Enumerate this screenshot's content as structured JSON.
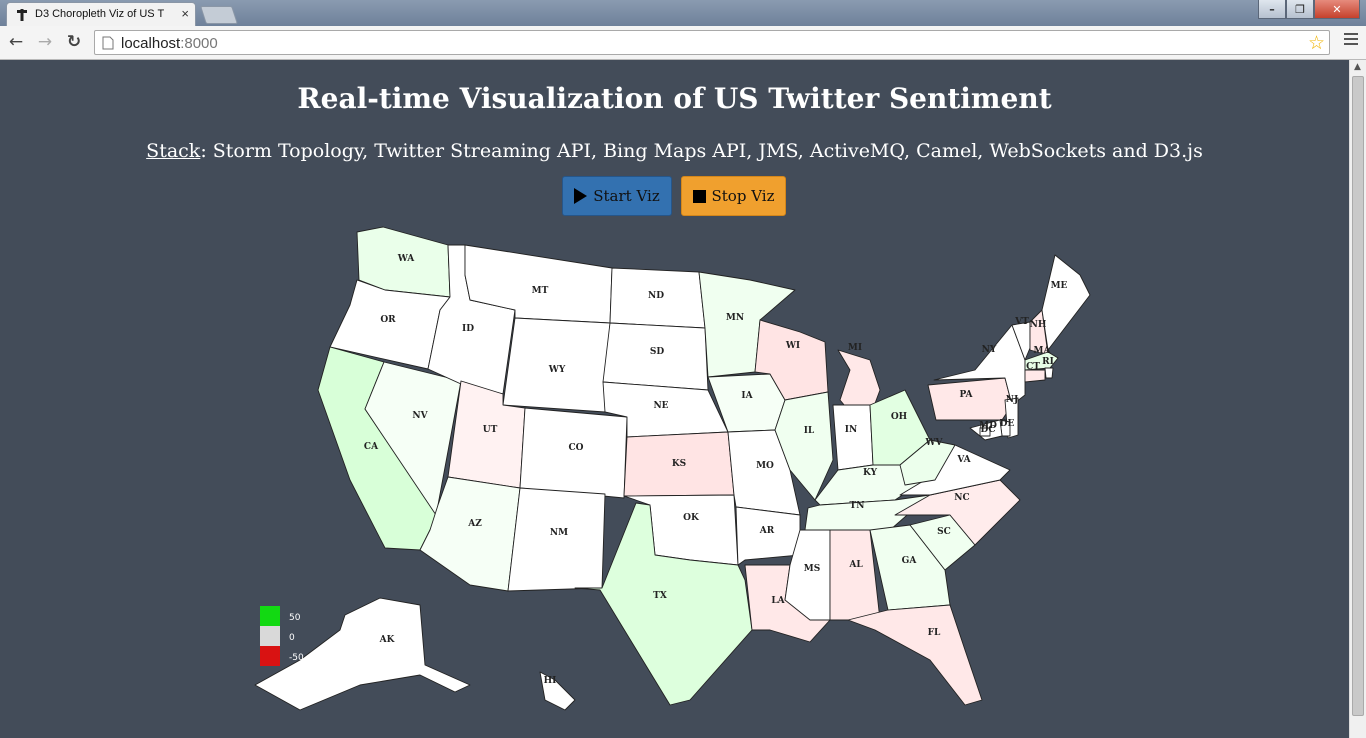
{
  "browser": {
    "tab_title": "D3 Choropleth Viz of US T",
    "tab_close": "×",
    "url_host": "localhost",
    "url_port": ":8000",
    "back_glyph": "←",
    "forward_glyph": "→",
    "reload_glyph": "↻",
    "bookmark_glyph": "☆",
    "minimize_glyph": "–",
    "maximize_glyph": "❐",
    "close_glyph": "✕"
  },
  "page": {
    "title": "Real-time Visualization of US Twitter Sentiment",
    "stack_label": "Stack",
    "stack_text": ": Storm Topology, Twitter Streaming API, Bing Maps API, JMS, ActiveMQ, Camel, WebSockets and D3.js",
    "start_button": "Start Viz",
    "stop_button": "Stop Viz"
  },
  "colors": {
    "background": "#434c59",
    "positive": "#12d912",
    "neutral": "#d9d9d9",
    "negative": "#d91212",
    "start_button": "#3371b0",
    "stop_button": "#f0a02e"
  },
  "icons": {
    "start": "play-icon",
    "stop": "stop-icon",
    "bookmark": "star-icon",
    "menu": "hamburger-menu-icon"
  },
  "map": {
    "legend": [
      {
        "label": "50",
        "color": "#12d912"
      },
      {
        "label": "0",
        "color": "#d9d9d9"
      },
      {
        "label": "-50",
        "color": "#d91212"
      }
    ],
    "states": [
      {
        "code": "WA",
        "fill": "#eaffea"
      },
      {
        "code": "OR",
        "fill": "#ffffff"
      },
      {
        "code": "CA",
        "fill": "#d8ffd8"
      },
      {
        "code": "NV",
        "fill": "#f6fff6"
      },
      {
        "code": "ID",
        "fill": "#ffffff"
      },
      {
        "code": "MT",
        "fill": "#ffffff"
      },
      {
        "code": "WY",
        "fill": "#ffffff"
      },
      {
        "code": "UT",
        "fill": "#fff2f2"
      },
      {
        "code": "AZ",
        "fill": "#f6fff6"
      },
      {
        "code": "CO",
        "fill": "#ffffff"
      },
      {
        "code": "NM",
        "fill": "#ffffff"
      },
      {
        "code": "ND",
        "fill": "#ffffff"
      },
      {
        "code": "SD",
        "fill": "#ffffff"
      },
      {
        "code": "NE",
        "fill": "#ffffff"
      },
      {
        "code": "KS",
        "fill": "#ffe4e4"
      },
      {
        "code": "OK",
        "fill": "#ffffff"
      },
      {
        "code": "TX",
        "fill": "#ddffdd"
      },
      {
        "code": "MN",
        "fill": "#f0fff0"
      },
      {
        "code": "IA",
        "fill": "#f6fff6"
      },
      {
        "code": "MO",
        "fill": "#ffffff"
      },
      {
        "code": "AR",
        "fill": "#ffffff"
      },
      {
        "code": "LA",
        "fill": "#ffe8e8"
      },
      {
        "code": "WI",
        "fill": "#ffe4e4"
      },
      {
        "code": "IL",
        "fill": "#f0fff0"
      },
      {
        "code": "MI",
        "fill": "#ffe8e8"
      },
      {
        "code": "IN",
        "fill": "#ffffff"
      },
      {
        "code": "OH",
        "fill": "#e2ffe2"
      },
      {
        "code": "KY",
        "fill": "#f2fff2"
      },
      {
        "code": "TN",
        "fill": "#f2fff2"
      },
      {
        "code": "MS",
        "fill": "#ffffff"
      },
      {
        "code": "AL",
        "fill": "#ffe8e8"
      },
      {
        "code": "GA",
        "fill": "#f0fff0"
      },
      {
        "code": "FL",
        "fill": "#ffe8e8"
      },
      {
        "code": "SC",
        "fill": "#f0fff0"
      },
      {
        "code": "NC",
        "fill": "#ffecec"
      },
      {
        "code": "VA",
        "fill": "#ffffff"
      },
      {
        "code": "WV",
        "fill": "#ecffec"
      },
      {
        "code": "PA",
        "fill": "#ffe8e8"
      },
      {
        "code": "NY",
        "fill": "#ffffff"
      },
      {
        "code": "VT",
        "fill": "#ffffff"
      },
      {
        "code": "NH",
        "fill": "#ffe8e8"
      },
      {
        "code": "ME",
        "fill": "#ffffff"
      },
      {
        "code": "MA",
        "fill": "#e8ffe8"
      },
      {
        "code": "RI",
        "fill": "#ffffff"
      },
      {
        "code": "CT",
        "fill": "#ffe8e8"
      },
      {
        "code": "NJ",
        "fill": "#ffffff"
      },
      {
        "code": "DE",
        "fill": "#ffffff"
      },
      {
        "code": "MD",
        "fill": "#ffffff"
      },
      {
        "code": "DC",
        "fill": "#ffffff"
      },
      {
        "code": "AK",
        "fill": "#ffffff"
      },
      {
        "code": "HI",
        "fill": "#ffffff"
      }
    ]
  }
}
